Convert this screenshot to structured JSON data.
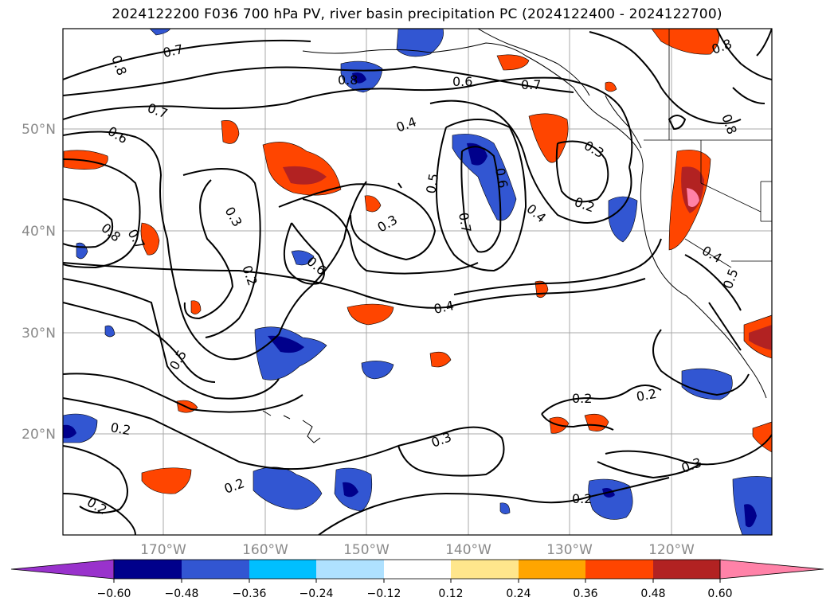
{
  "title": "2024122200 F036 700 hPa PV, river basin precipitation PC (2024122400 - 2024122700)",
  "map": {
    "lat_labels": [
      "50°N",
      "40°N",
      "30°N",
      "20°N"
    ],
    "lon_labels": [
      "170°W",
      "160°W",
      "150°W",
      "140°W",
      "130°W",
      "120°W"
    ],
    "contour_labels": [
      "0.8",
      "0.7",
      "0.6",
      "0.4",
      "0.3",
      "0.2",
      "0.5"
    ],
    "colors": {
      "pos_light": "#ffe68c",
      "pos_orange": "#ffa500",
      "pos_red": "#ff4500",
      "pos_dark": "#b22222",
      "pos_pink": "#ff82a8",
      "neg_pale": "#afe1ff",
      "neg_cyan": "#00bfff",
      "neg_blue": "#3256d2",
      "neg_navy": "#00008b",
      "neg_purple": "#9932cc"
    }
  },
  "colorbar": {
    "tick_labels": [
      "−0.60",
      "−0.48",
      "−0.36",
      "−0.24",
      "−0.12",
      "0.12",
      "0.24",
      "0.36",
      "0.48",
      "0.60"
    ],
    "colors": [
      "#9932cc",
      "#00008b",
      "#3256d2",
      "#00bfff",
      "#afe1ff",
      "#ffffff",
      "#ffe68c",
      "#ffa500",
      "#ff4500",
      "#b22222",
      "#ff82a8"
    ]
  }
}
